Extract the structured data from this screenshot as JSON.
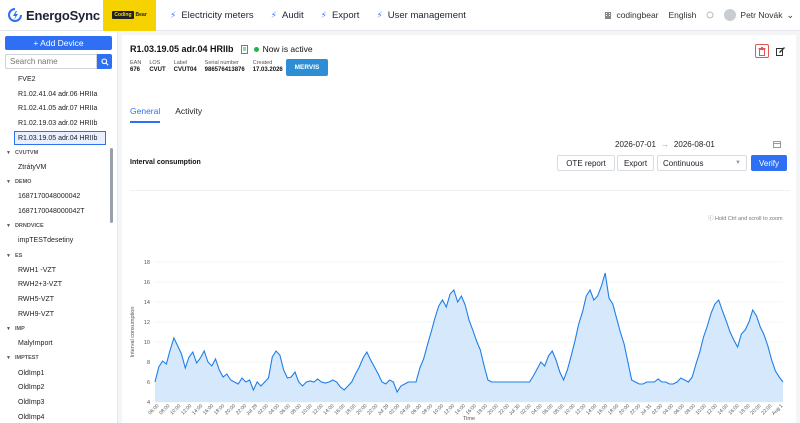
{
  "app": {
    "name": "EnergoSync",
    "brand_badge_left": "Coding",
    "brand_badge_right": "Bear"
  },
  "nav": [
    {
      "label": "Electricity meters"
    },
    {
      "label": "Audit"
    },
    {
      "label": "Export"
    },
    {
      "label": "User management"
    }
  ],
  "top_right": {
    "org": "codingbear",
    "language": "English",
    "user": "Petr Novák"
  },
  "sidebar": {
    "add_button": "+ Add Device",
    "search_placeholder": "Search name",
    "tree": [
      {
        "label": "FVE2",
        "type": "item"
      },
      {
        "label": "R1.02.41.04 adr.06 HRIIa",
        "type": "item"
      },
      {
        "label": "R1.02.41.05 adr.07 HRIIa",
        "type": "item"
      },
      {
        "label": "R1.02.19.03 adr.02 HRIIb",
        "type": "item"
      },
      {
        "label": "R1.03.19.05 adr.04 HRIIb",
        "type": "item",
        "selected": true
      },
      {
        "label": "CVUTVM",
        "type": "group"
      },
      {
        "label": "ZtrátyVM",
        "type": "item"
      },
      {
        "label": "DEMO",
        "type": "group"
      },
      {
        "label": "1687170048000042",
        "type": "item"
      },
      {
        "label": "1687170048000042T",
        "type": "item"
      },
      {
        "label": "DRNDVICE",
        "type": "group"
      },
      {
        "label": "impTESTdesetiny",
        "type": "item"
      },
      {
        "label": "ES",
        "type": "group"
      },
      {
        "label": "RWH1 -VZT",
        "type": "item"
      },
      {
        "label": "RWH2+3-VZT",
        "type": "item"
      },
      {
        "label": "RWH5-VZT",
        "type": "item"
      },
      {
        "label": "RWH9-VZT",
        "type": "item"
      },
      {
        "label": "IMP",
        "type": "group"
      },
      {
        "label": "MalyImport",
        "type": "item"
      },
      {
        "label": "IMPTEST",
        "type": "group"
      },
      {
        "label": "OldImp1",
        "type": "item"
      },
      {
        "label": "OldImp2",
        "type": "item"
      },
      {
        "label": "OldImp3",
        "type": "item"
      },
      {
        "label": "OldImp4",
        "type": "item"
      }
    ]
  },
  "device": {
    "title": "R1.03.19.05 adr.04 HRIIb",
    "status": "Now is active",
    "meta": [
      {
        "label": "EAN",
        "value": "676"
      },
      {
        "label": "LOS",
        "value": "CVUT"
      },
      {
        "label": "Label",
        "value": "CVUT04"
      },
      {
        "label": "Serial number",
        "value": "986576413876"
      },
      {
        "label": "Created",
        "value": "17.03.2026"
      }
    ],
    "partner_button": "MERVIS"
  },
  "tabs": [
    {
      "label": "General",
      "active": true
    },
    {
      "label": "Activity"
    }
  ],
  "date_from": "2026-07-01",
  "date_to": "2026-08-01",
  "section_title": "Interval consumption",
  "buttons": {
    "ote": "OTE report",
    "export": "Export",
    "mode": "Continuous",
    "verify": "Verify"
  },
  "zoom_hint": "Hold Ctrl and scroll to zoom",
  "colors": {
    "accent": "#2f6ff3",
    "area_fill": "#cfe4fb",
    "line": "#1e7fe8",
    "brand_yellow": "#f6d300"
  },
  "chart_data": {
    "type": "area",
    "title": "",
    "xlabel": "Time",
    "ylabel": "Interval consumption",
    "ylim": [
      4,
      18
    ],
    "yticks": [
      4,
      6,
      8,
      10,
      12,
      14,
      16,
      18
    ],
    "x_ticks": [
      "06:00",
      "08:00",
      "10:00",
      "12:00",
      "14:00",
      "16:00",
      "18:00",
      "20:00",
      "22:00",
      "Jul 28",
      "02:00",
      "04:00",
      "06:00",
      "08:00",
      "10:00",
      "12:00",
      "14:00",
      "16:00",
      "18:00",
      "20:00",
      "22:00",
      "Jul 29",
      "02:00",
      "04:00",
      "06:00",
      "08:00",
      "10:00",
      "12:00",
      "14:00",
      "16:00",
      "18:00",
      "20:00",
      "22:00",
      "Jul 30",
      "02:00",
      "04:00",
      "06:00",
      "08:00",
      "10:00",
      "12:00",
      "14:00",
      "16:00",
      "18:00",
      "20:00",
      "22:00",
      "Jul 31",
      "02:00",
      "04:00",
      "06:00",
      "08:00",
      "10:00",
      "12:00",
      "14:00",
      "16:00",
      "18:00",
      "20:00",
      "22:00",
      "Aug 1"
    ],
    "grid": true,
    "series": [
      {
        "values": [
          6.0,
          7.5,
          8.1,
          7.8,
          9.2,
          10.4,
          9.6,
          8.8,
          7.4,
          8.5,
          9.0,
          7.9,
          8.4,
          9.1,
          8.0,
          7.6,
          8.3,
          7.2,
          6.5,
          6.8,
          6.2,
          6.0,
          5.8,
          6.4,
          6.0,
          6.2,
          5.2,
          6.0,
          5.6,
          6.0,
          6.4,
          8.5,
          9.1,
          8.7,
          7.2,
          6.4,
          6.5,
          7.0,
          6.0,
          5.6,
          6.0,
          6.1,
          6.0,
          6.3,
          6.0,
          5.9,
          6.0,
          6.2,
          6.0,
          5.5,
          5.2,
          5.6,
          6.0,
          6.8,
          7.5,
          8.4,
          9.0,
          8.2,
          7.5,
          6.8,
          6.0,
          5.8,
          6.2,
          6.0,
          5.0,
          5.6,
          5.8,
          6.0,
          6.0,
          6.0,
          7.4,
          8.3,
          9.7,
          11.0,
          12.4,
          13.6,
          14.2,
          13.5,
          14.8,
          15.2,
          14.0,
          14.6,
          13.7,
          12.2,
          11.2,
          10.1,
          9.2,
          7.6,
          6.2,
          6.0,
          6.0,
          6.0,
          6.0,
          6.0,
          6.0,
          6.0,
          6.0,
          6.0,
          6.0,
          6.0,
          6.6,
          7.3,
          8.0,
          7.6,
          8.6,
          9.1,
          8.2,
          7.0,
          6.2,
          7.2,
          8.6,
          10.1,
          11.8,
          13.0,
          14.6,
          15.2,
          14.2,
          14.6,
          15.6,
          16.9,
          14.4,
          13.8,
          12.4,
          11.0,
          9.8,
          8.0,
          6.2,
          6.0,
          5.8,
          5.8,
          6.0,
          6.0,
          6.0,
          6.3,
          6.0,
          6.0,
          5.8,
          5.8,
          6.0,
          6.4,
          6.2,
          6.0,
          6.5,
          7.8,
          9.0,
          10.5,
          11.6,
          12.9,
          13.8,
          14.2,
          13.1,
          12.1,
          11.0,
          10.2,
          9.5,
          10.8,
          11.2,
          12.0,
          13.2,
          12.6,
          11.5,
          10.7,
          9.6,
          8.2,
          7.1,
          6.5,
          6.0
        ]
      }
    ]
  }
}
